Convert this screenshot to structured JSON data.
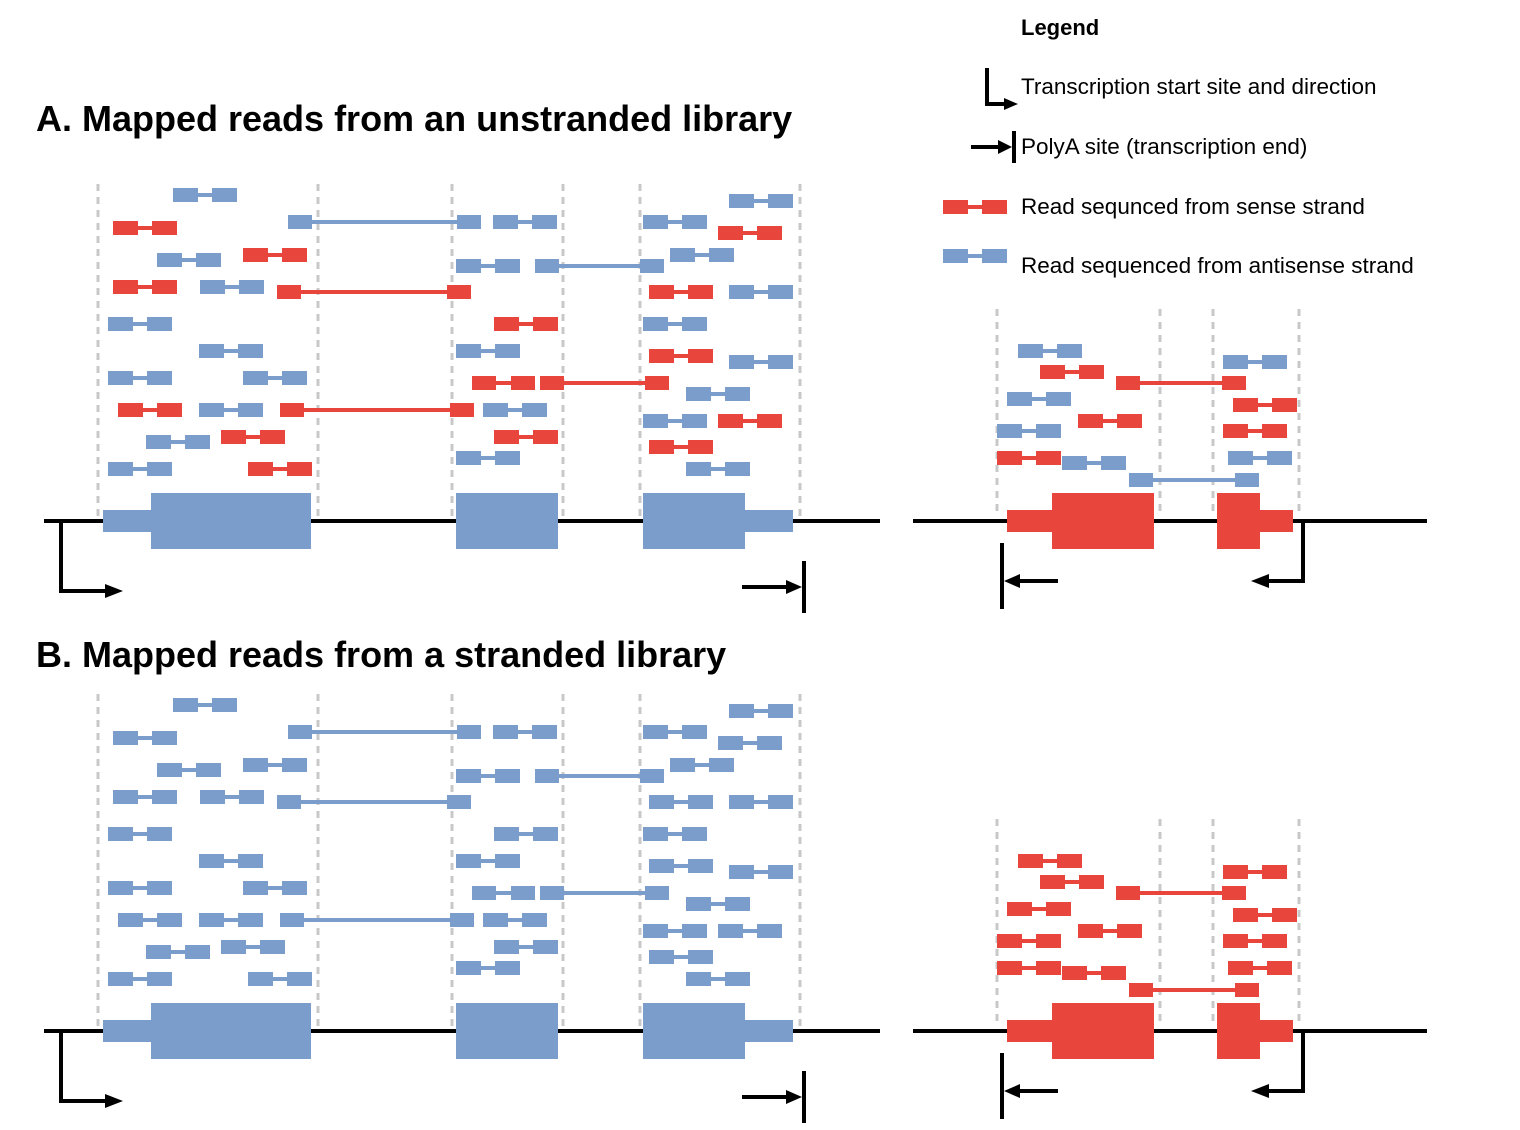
{
  "panel_a": {
    "title": "A. Mapped reads from an unstranded library"
  },
  "panel_b": {
    "title": "B. Mapped reads from a stranded library"
  },
  "legend": {
    "title": "Legend",
    "items": [
      {
        "icon": "tss-arrow-icon",
        "label": "Transcription start site and direction"
      },
      {
        "icon": "polya-arrow-icon",
        "label": "PolyA site (transcription end)"
      },
      {
        "icon": "sense-read-icon",
        "label": "Read sequnced from sense strand"
      },
      {
        "icon": "antisense-read-icon",
        "label": "Read sequenced from antisense strand"
      }
    ]
  },
  "colors": {
    "sense": "#e8453c",
    "antisense": "#7b9dcb",
    "guide": "#c8c8c8",
    "line": "#000000"
  }
}
